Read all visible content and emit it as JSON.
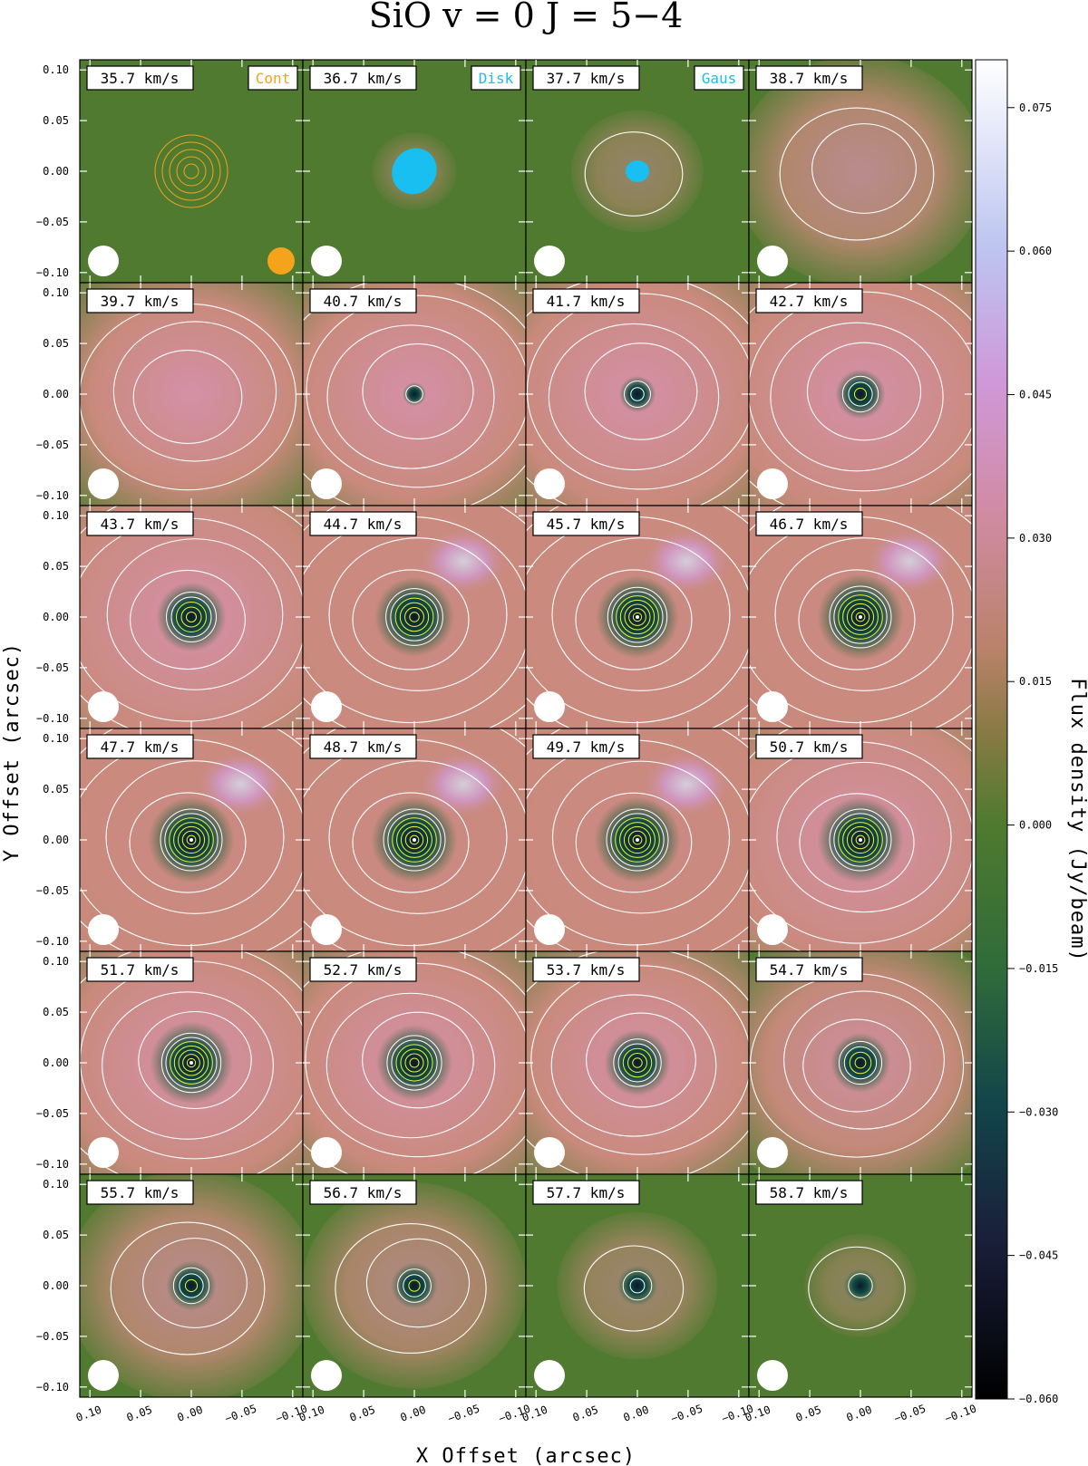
{
  "chart_data": {
    "type": "heatmap",
    "title": "SiO  v = 0  J = 5−4",
    "xlabel": "X Offset  (arcsec)",
    "ylabel": "Y Offset  (arcsec)",
    "colorbar_label": "Flux density  (Jy/beam)",
    "colorbar_ticks": [
      "0.075",
      "0.060",
      "0.045",
      "0.030",
      "0.015",
      "0.000",
      "−0.015",
      "−0.030",
      "−0.045",
      "−0.060"
    ],
    "colorbar_tick_values": [
      0.075,
      0.06,
      0.045,
      0.03,
      0.015,
      0.0,
      -0.015,
      -0.03,
      -0.045,
      -0.06
    ],
    "colorbar_range": [
      -0.06,
      0.08
    ],
    "x_ticks": [
      "0.10",
      "0.05",
      "0.00",
      "−0.05",
      "−0.10"
    ],
    "x_tick_values": [
      0.1,
      0.05,
      0.0,
      -0.05,
      -0.1
    ],
    "y_ticks": [
      "0.10",
      "0.05",
      "0.00",
      "−0.05",
      "−0.10"
    ],
    "y_tick_values": [
      0.1,
      0.05,
      0.0,
      -0.05,
      -0.1
    ],
    "xlim": [
      0.11,
      -0.11
    ],
    "ylim": [
      -0.11,
      0.11
    ],
    "grid": false,
    "legend_tags": [
      {
        "text": "Cont",
        "panel": 0,
        "color": "#f5a31a"
      },
      {
        "text": "Disk",
        "panel": 1,
        "color": "#19bff0"
      },
      {
        "text": "Gaus",
        "panel": 2,
        "color": "#19bff0"
      }
    ],
    "colors": {
      "background_low": "#4f7a2f",
      "background_mid": "#c98a7c",
      "peak_high": "#cfe9ff",
      "absorption": "#0b2a2e",
      "contour_white": "#ffffff",
      "contour_yellow": "#f4f230",
      "continuum": "#f5a31a",
      "disk": "#19bff0"
    },
    "panels": [
      {
        "velocity": "35.7 km/s",
        "emission": 0.0,
        "absorption": 0.0
      },
      {
        "velocity": "36.7 km/s",
        "emission": 0.03,
        "absorption": 0.0
      },
      {
        "velocity": "37.7 km/s",
        "emission": 0.15,
        "absorption": 0.0
      },
      {
        "velocity": "38.7 km/s",
        "emission": 0.45,
        "absorption": 0.0
      },
      {
        "velocity": "39.7 km/s",
        "emission": 0.65,
        "absorption": 0.0
      },
      {
        "velocity": "40.7 km/s",
        "emission": 0.75,
        "absorption": 0.05
      },
      {
        "velocity": "41.7 km/s",
        "emission": 0.82,
        "absorption": 0.25
      },
      {
        "velocity": "42.7 km/s",
        "emission": 0.88,
        "absorption": 0.45
      },
      {
        "velocity": "43.7 km/s",
        "emission": 0.95,
        "absorption": 0.75
      },
      {
        "velocity": "44.7 km/s",
        "emission": 1.0,
        "absorption": 0.9
      },
      {
        "velocity": "45.7 km/s",
        "emission": 1.0,
        "absorption": 0.95
      },
      {
        "velocity": "46.7 km/s",
        "emission": 1.0,
        "absorption": 1.0
      },
      {
        "velocity": "47.7 km/s",
        "emission": 1.0,
        "absorption": 1.0
      },
      {
        "velocity": "48.7 km/s",
        "emission": 1.0,
        "absorption": 1.0
      },
      {
        "velocity": "49.7 km/s",
        "emission": 0.98,
        "absorption": 1.0
      },
      {
        "velocity": "50.7 km/s",
        "emission": 0.92,
        "absorption": 1.0
      },
      {
        "velocity": "51.7 km/s",
        "emission": 0.85,
        "absorption": 0.95
      },
      {
        "velocity": "52.7 km/s",
        "emission": 0.78,
        "absorption": 0.85
      },
      {
        "velocity": "53.7 km/s",
        "emission": 0.7,
        "absorption": 0.7
      },
      {
        "velocity": "54.7 km/s",
        "emission": 0.6,
        "absorption": 0.6
      },
      {
        "velocity": "55.7 km/s",
        "emission": 0.45,
        "absorption": 0.45
      },
      {
        "velocity": "56.7 km/s",
        "emission": 0.38,
        "absorption": 0.4
      },
      {
        "velocity": "57.7 km/s",
        "emission": 0.22,
        "absorption": 0.3
      },
      {
        "velocity": "58.7 km/s",
        "emission": 0.1,
        "absorption": 0.2
      }
    ]
  }
}
